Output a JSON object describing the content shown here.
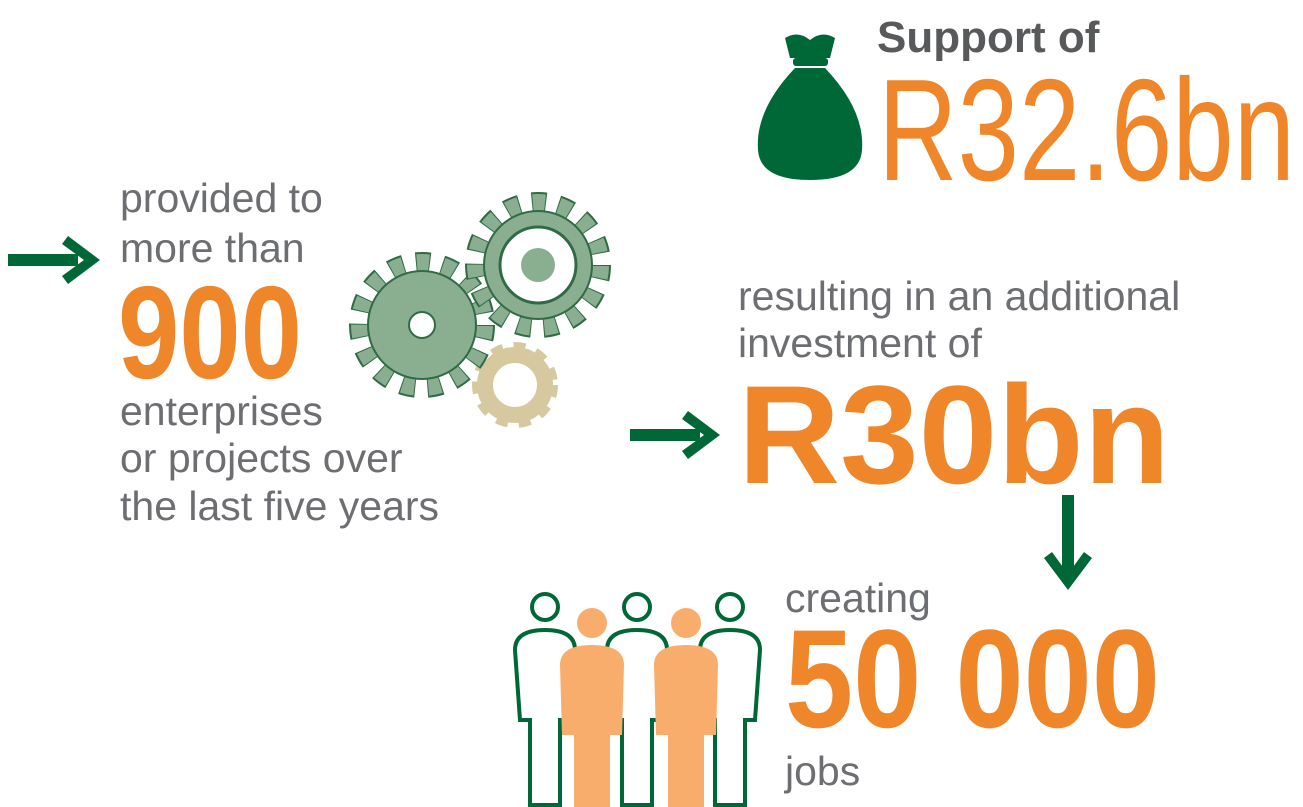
{
  "support": {
    "label": "Support of",
    "amount": "R32.6bn"
  },
  "enterprises": {
    "intro": [
      "provided to",
      "more than"
    ],
    "number": "900",
    "outro": [
      "enterprises",
      "or projects over",
      "the last five years"
    ]
  },
  "investment": {
    "intro": [
      "resulting in an additional",
      "investment of"
    ],
    "amount": "R30bn"
  },
  "jobs": {
    "intro": "creating",
    "number": "50 000",
    "outro": "jobs"
  }
}
